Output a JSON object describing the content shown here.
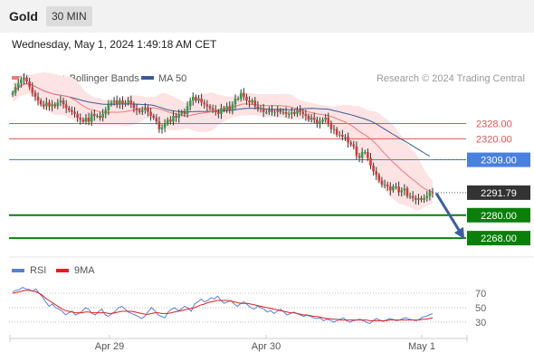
{
  "header": {
    "instrument": "Gold",
    "timeframe": "30 MIN"
  },
  "timestamp": "Wednesday, May 1, 2024 1:49:18 AM CET",
  "legend": {
    "ma20_bb": "MA 20 + Bollinger Bands",
    "ma50": "MA 50",
    "credit": "Research © 2024 Trading Central",
    "rsi": "RSI",
    "ma9": "9MA"
  },
  "colors": {
    "ma20": "#f07a7a",
    "ma50": "#3a5a9a",
    "band_fill": "#fde3e3",
    "bull": "#2e9e44",
    "bear": "#d43a3a",
    "wick": "#333333",
    "resistance": "#e05555",
    "pivot": "#4a80e0",
    "support": "#0a7f0a",
    "arrow": "#3a5fa0",
    "rsi": "#5b7fd6",
    "rsi_ma": "#dd2222",
    "price_tag": "#333333"
  },
  "chart_data": [
    {
      "type": "candlestick",
      "x_axis": {
        "ticks": [
          "Apr 29",
          "Apr 30",
          "May 1"
        ]
      },
      "y_range": [
        2260,
        2350
      ],
      "levels": [
        {
          "label": "2328.00",
          "value": 2328.0,
          "kind": "resistance"
        },
        {
          "label": "2320.00",
          "value": 2320.0,
          "kind": "resistance"
        },
        {
          "label": "2309.00",
          "value": 2309.0,
          "kind": "pivot"
        },
        {
          "label": "2280.00",
          "value": 2280.0,
          "kind": "support"
        },
        {
          "label": "2268.00",
          "value": 2268.0,
          "kind": "support"
        }
      ],
      "last_price": {
        "label": "2291.79",
        "value": 2291.79
      },
      "projection": {
        "from": 2291.5,
        "to": 2268.0
      },
      "close": [
        2344,
        2347,
        2349,
        2351,
        2352,
        2350,
        2347,
        2344,
        2342,
        2340,
        2338,
        2337,
        2339,
        2337,
        2338,
        2337,
        2339,
        2340,
        2338,
        2336,
        2335,
        2334,
        2333,
        2331,
        2330,
        2329,
        2331,
        2329,
        2333,
        2332,
        2332,
        2331,
        2333,
        2335,
        2338,
        2339,
        2340,
        2338,
        2340,
        2338,
        2339,
        2340,
        2338,
        2336,
        2335,
        2334,
        2335,
        2336,
        2334,
        2332,
        2331,
        2329,
        2325,
        2326,
        2328,
        2330,
        2329,
        2332,
        2331,
        2333,
        2334,
        2333,
        2337,
        2340,
        2342,
        2340,
        2341,
        2339,
        2338,
        2337,
        2336,
        2335,
        2334,
        2333,
        2336,
        2335,
        2337,
        2335,
        2338,
        2341,
        2341,
        2344,
        2342,
        2340,
        2339,
        2340,
        2337,
        2336,
        2336,
        2334,
        2334,
        2335,
        2334,
        2334,
        2335,
        2334,
        2334,
        2333,
        2333,
        2334,
        2333,
        2335,
        2334,
        2333,
        2332,
        2330,
        2331,
        2330,
        2328,
        2329,
        2330,
        2331,
        2328,
        2325,
        2325,
        2322,
        2322,
        2321,
        2321,
        2318,
        2317,
        2316,
        2311,
        2310,
        2313,
        2313,
        2310,
        2306,
        2303,
        2301,
        2298,
        2296,
        2296,
        2295,
        2293,
        2295,
        2295,
        2292,
        2293,
        2294,
        2290,
        2290,
        2289,
        2288,
        2289,
        2288,
        2289,
        2290,
        2292,
        2291.79
      ]
    },
    {
      "type": "line",
      "name": "RSI",
      "y_range": [
        15,
        85
      ],
      "y_ticks": [
        70,
        50,
        30
      ],
      "rsi": [
        72,
        74,
        75,
        78,
        76,
        75,
        73,
        76,
        70,
        65,
        58,
        52,
        55,
        50,
        48,
        45,
        40,
        43,
        45,
        40,
        42,
        45,
        50,
        48,
        42,
        40,
        45,
        48,
        40,
        38,
        42,
        45,
        50,
        52,
        48,
        44,
        42,
        40,
        38,
        35,
        38,
        45,
        50,
        46,
        40,
        38,
        36,
        44,
        48,
        50,
        46,
        48,
        52,
        50,
        45,
        55,
        58,
        62,
        58,
        60,
        64,
        62,
        66,
        60,
        56,
        58,
        60,
        55,
        52,
        56,
        58,
        54,
        50,
        48,
        52,
        50,
        48,
        44,
        46,
        42,
        45,
        48,
        44,
        40,
        42,
        44,
        42,
        40,
        38,
        40,
        38,
        36,
        35,
        36,
        32,
        34,
        33,
        30,
        32,
        34,
        36,
        32,
        30,
        32,
        33,
        34,
        32,
        30,
        28,
        32,
        35,
        33,
        31,
        33,
        35,
        34,
        32,
        33,
        35,
        36,
        34,
        33,
        32,
        34,
        37,
        38,
        40,
        42
      ],
      "ma": [
        70,
        71,
        72,
        73,
        74,
        74,
        73,
        72,
        70,
        67,
        63,
        60,
        57,
        54,
        51,
        48,
        46,
        45,
        44,
        43,
        43,
        43,
        44,
        44,
        43,
        43,
        43,
        43,
        43,
        42,
        42,
        43,
        44,
        45,
        45,
        45,
        45,
        44,
        43,
        42,
        41,
        41,
        42,
        43,
        43,
        42,
        42,
        42,
        43,
        44,
        45,
        46,
        47,
        48,
        49,
        50,
        52,
        54,
        55,
        57,
        58,
        59,
        60,
        60,
        60,
        60,
        59,
        58,
        57,
        56,
        56,
        56,
        55,
        54,
        53,
        52,
        51,
        50,
        49,
        48,
        47,
        46,
        45,
        44,
        43,
        43,
        42,
        41,
        40,
        40,
        39,
        38,
        38,
        37,
        36,
        35,
        35,
        34,
        34,
        33,
        33,
        33,
        33,
        33,
        33,
        33,
        33,
        33,
        32,
        32,
        32,
        32,
        32,
        32,
        33,
        33,
        33,
        33,
        33,
        33,
        33,
        33,
        33,
        33,
        34,
        34,
        35,
        36
      ]
    }
  ]
}
